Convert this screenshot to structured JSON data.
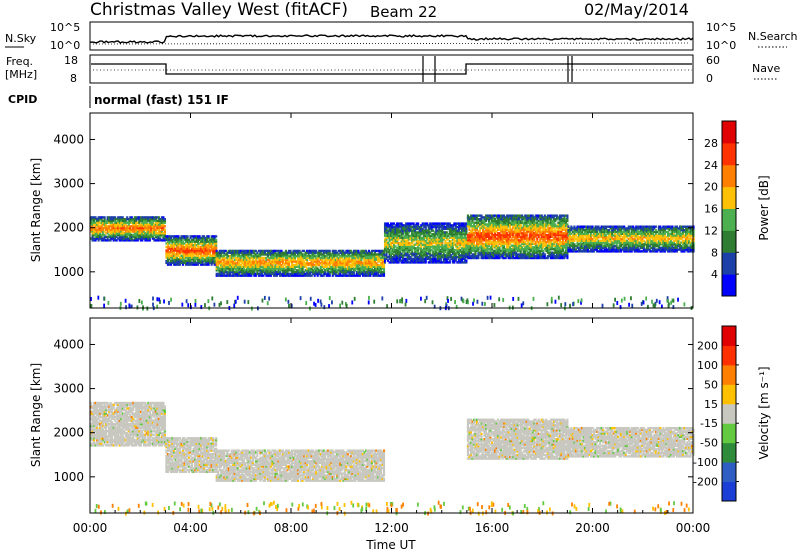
{
  "header": {
    "station": "Christmas Valley West (fitACF)",
    "beam": "Beam 22",
    "date": "02/May/2014"
  },
  "housekeeping": {
    "nsky_label": "N.Sky",
    "nsky_ticks": [
      "10^5",
      "10^0"
    ],
    "nsearch_label": "N.Search",
    "nsearch_ticks": [
      "10^5",
      "10^0"
    ],
    "freq_label_1": "Freq.",
    "freq_label_2": "[MHz]",
    "freq_ticks": [
      "18",
      "8"
    ],
    "nave_label": "Nave",
    "nave_ticks": [
      "60",
      "0"
    ],
    "cpid_label": "CPID",
    "cpid_text": "normal (fast) 151 IF"
  },
  "chart_data": [
    {
      "type": "heatmap",
      "name": "power-panel",
      "ylabel": "Slant Range [km]",
      "yticks": [
        "1000",
        "2000",
        "3000",
        "4000"
      ],
      "ylim": [
        180,
        4600
      ],
      "colorbar_label": "Power [dB]",
      "colorbar_ticks": [
        "4",
        "8",
        "12",
        "16",
        "20",
        "24",
        "28"
      ],
      "colors": [
        "#0000ff",
        "#1d3fa8",
        "#2e7d32",
        "#4caf50",
        "#ffc107",
        "#ff7f00",
        "#ff3300",
        "#e00000"
      ],
      "bands": [
        {
          "t0": 0.0,
          "t1": 3.0,
          "r0": 1700,
          "r1": 2250,
          "peak": 24
        },
        {
          "t0": 3.0,
          "t1": 5.0,
          "r0": 1150,
          "r1": 1800,
          "peak": 26
        },
        {
          "t0": 5.0,
          "t1": 11.7,
          "r0": 900,
          "r1": 1500,
          "peak": 22
        },
        {
          "t0": 11.7,
          "t1": 15.0,
          "r0": 1200,
          "r1": 2100,
          "peak": 18
        },
        {
          "t0": 15.0,
          "t1": 19.0,
          "r0": 1300,
          "r1": 2300,
          "peak": 26
        },
        {
          "t0": 19.0,
          "t1": 24.0,
          "r0": 1450,
          "r1": 2050,
          "peak": 20
        }
      ]
    },
    {
      "type": "heatmap",
      "name": "velocity-panel",
      "ylabel": "Slant Range [km]",
      "yticks": [
        "1000",
        "2000",
        "3000",
        "4000"
      ],
      "ylim": [
        180,
        4600
      ],
      "colorbar_label": "Velocity [m s⁻¹]",
      "colorbar_ticks": [
        "200",
        "100",
        "50",
        "15",
        "-15",
        "-50",
        "-100",
        "-200"
      ],
      "colors": [
        "#1b3fd6",
        "#2e5ec4",
        "#2e8b3a",
        "#62c940",
        "#c8c8c0",
        "#ffc000",
        "#ff8000",
        "#ff3000",
        "#e00000"
      ],
      "bands": [
        {
          "t0": 0.0,
          "t1": 3.0,
          "r0": 1700,
          "r1": 2700,
          "value": 0
        },
        {
          "t0": 3.0,
          "t1": 5.0,
          "r0": 1100,
          "r1": 1900,
          "value": 0
        },
        {
          "t0": 5.0,
          "t1": 11.7,
          "r0": 900,
          "r1": 1600,
          "value": 0
        },
        {
          "t0": 15.0,
          "t1": 19.0,
          "r0": 1400,
          "r1": 2300,
          "value": 0
        },
        {
          "t0": 19.0,
          "t1": 24.0,
          "r0": 1450,
          "r1": 2100,
          "value": 0
        }
      ]
    }
  ],
  "x_axis": {
    "label": "Time UT",
    "ticks": [
      "00:00",
      "04:00",
      "08:00",
      "12:00",
      "16:00",
      "20:00",
      "00:00"
    ],
    "range_hours": [
      0,
      24
    ]
  }
}
